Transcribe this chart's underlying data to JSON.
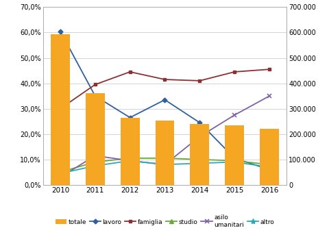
{
  "years": [
    2010,
    2011,
    2012,
    2013,
    2014,
    2015,
    2016
  ],
  "totale": [
    592000,
    360000,
    263000,
    252000,
    241000,
    234000,
    222000
  ],
  "lavoro": [
    60.5,
    35.0,
    26.5,
    33.5,
    24.5,
    10.5,
    6.0
  ],
  "famiglia": [
    30.0,
    39.5,
    44.5,
    41.5,
    41.0,
    44.5,
    45.5
  ],
  "studio": [
    5.0,
    9.0,
    10.5,
    10.5,
    10.0,
    9.5,
    8.0
  ],
  "asilo_umanitari": [
    3.0,
    11.5,
    9.5,
    8.0,
    19.0,
    27.5,
    35.0
  ],
  "altro": [
    4.5,
    7.5,
    9.5,
    8.0,
    8.5,
    9.0,
    7.0
  ],
  "bar_color": "#f5a623",
  "lavoro_color": "#2e5fa3",
  "famiglia_color": "#8b3030",
  "studio_color": "#6aaa3a",
  "asilo_color": "#8060a8",
  "altro_color": "#2aacb8",
  "ylim_left": [
    0.0,
    70.0
  ],
  "ylim_right": [
    0,
    700000
  ],
  "yticks_left": [
    0.0,
    10.0,
    20.0,
    30.0,
    40.0,
    50.0,
    60.0,
    70.0
  ],
  "yticks_right": [
    0,
    100000,
    200000,
    300000,
    400000,
    500000,
    600000,
    700000
  ]
}
